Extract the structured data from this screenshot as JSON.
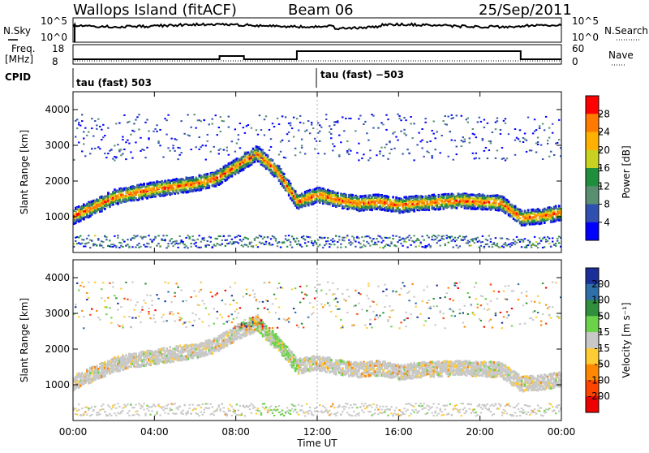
{
  "header": {
    "station": "Wallops Island (fitACF)",
    "beam": "Beam 06",
    "date": "25/Sep/2011"
  },
  "panels": {
    "nsky_label": "N.Sky",
    "nsky_ticks": [
      "10^5",
      "10^0"
    ],
    "nsearch_label": "N.Search",
    "nsearch_ticks": [
      "10^5",
      "10^0"
    ],
    "freq_label_1": "Freq.",
    "freq_label_2": "[MHz]",
    "freq_ticks": [
      "18",
      "8"
    ],
    "nave_label": "Nave",
    "nave_ticks": [
      "60",
      "0"
    ],
    "cpid_label": "CPID",
    "cpid_left": "tau (fast) 503",
    "cpid_right": "tau (fast) −503"
  },
  "chart_data": [
    {
      "type": "heatmap",
      "parameter": "power",
      "ylabel": "Slant Range [km]",
      "ylim": [
        0,
        4500
      ],
      "yticks": [
        "4000",
        "3000",
        "2000",
        "1000"
      ],
      "colorbar_label": "Power [dB]",
      "colorbar_ticks": [
        "28",
        "24",
        "20",
        "16",
        "12",
        "8",
        "4"
      ],
      "colorbar_colors": [
        "#ff0000",
        "#ff7a00",
        "#ffb000",
        "#c9d21f",
        "#1f8f3d",
        "#5a8e70",
        "#3050b0",
        "#0000ff"
      ],
      "xticks": [
        "00:00",
        "04:00",
        "08:00",
        "12:00",
        "16:00",
        "20:00",
        "00:00"
      ],
      "main_band_center_km": [
        [
          0,
          1050
        ],
        [
          1,
          1300
        ],
        [
          2,
          1580
        ],
        [
          3,
          1700
        ],
        [
          4,
          1800
        ],
        [
          5,
          1880
        ],
        [
          6,
          1960
        ],
        [
          7,
          2100
        ],
        [
          8,
          2450
        ],
        [
          9,
          2800
        ],
        [
          10,
          2300
        ],
        [
          11,
          1450
        ],
        [
          12,
          1650
        ],
        [
          13,
          1500
        ],
        [
          14,
          1400
        ],
        [
          15,
          1450
        ],
        [
          16,
          1350
        ],
        [
          17,
          1420
        ],
        [
          18,
          1450
        ],
        [
          19,
          1480
        ],
        [
          20,
          1450
        ],
        [
          21,
          1420
        ],
        [
          22,
          1000
        ],
        [
          23,
          1050
        ],
        [
          24,
          1150
        ]
      ]
    },
    {
      "type": "heatmap",
      "parameter": "velocity",
      "ylabel": "Slant Range [km]",
      "xlabel": "Time UT",
      "ylim": [
        0,
        4500
      ],
      "yticks": [
        "4000",
        "3000",
        "2000",
        "1000"
      ],
      "colorbar_label": "Velocity [m s⁻¹]",
      "colorbar_ticks": [
        "200",
        "100",
        "50",
        "15",
        "-15",
        "-50",
        "-100",
        "-200"
      ],
      "colorbar_colors": [
        "#1a2f9a",
        "#2e6fa8",
        "#2f8f3c",
        "#6cd24a",
        "#c8c8c8",
        "#ffcc33",
        "#ff8800",
        "#ff4400",
        "#ee0000"
      ],
      "xticks": [
        "00:00",
        "04:00",
        "08:00",
        "12:00",
        "16:00",
        "20:00",
        "00:00"
      ],
      "main_band_center_km": [
        [
          0,
          1100
        ],
        [
          1,
          1350
        ],
        [
          2,
          1600
        ],
        [
          3,
          1720
        ],
        [
          4,
          1820
        ],
        [
          5,
          1900
        ],
        [
          6,
          1980
        ],
        [
          7,
          2150
        ],
        [
          8,
          2500
        ],
        [
          9,
          2750
        ],
        [
          10,
          2200
        ],
        [
          11,
          1550
        ],
        [
          12,
          1650
        ],
        [
          13,
          1520
        ],
        [
          14,
          1450
        ],
        [
          15,
          1500
        ],
        [
          16,
          1380
        ],
        [
          17,
          1450
        ],
        [
          18,
          1480
        ],
        [
          19,
          1500
        ],
        [
          20,
          1480
        ],
        [
          21,
          1450
        ],
        [
          22,
          1050
        ],
        [
          23,
          1100
        ],
        [
          24,
          1200
        ]
      ]
    }
  ]
}
